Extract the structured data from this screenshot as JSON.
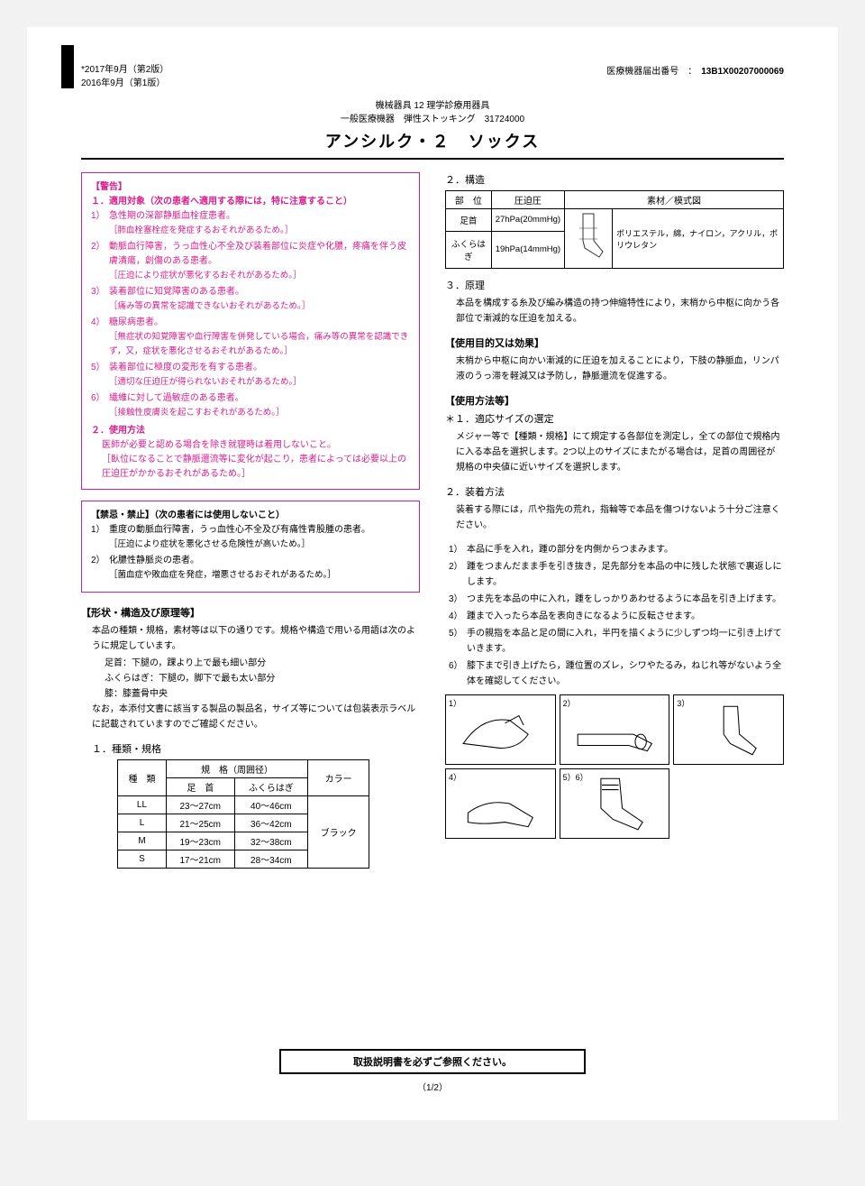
{
  "header": {
    "version2": "*2017年9月（第2版）",
    "version1": "2016年9月（第1版）",
    "device_no_label": "医療機器届出番号　：　",
    "device_no": "13B1X00207000069",
    "category1": "機械器具 12 理学診療用器具",
    "category2": "一般医療機器　弾性ストッキング　31724000",
    "product_name": "アンシルク・２　ソックス"
  },
  "warning": {
    "title": "【警告】",
    "sub1": "１．適用対象（次の患者へ適用する際には，特に注意すること）",
    "items": [
      {
        "n": "1）",
        "t": "急性期の深部静脈血栓症患者。",
        "b": "［肺血栓塞栓症を発症するおそれがあるため。］"
      },
      {
        "n": "2）",
        "t": "動脈血行障害，うっ血性心不全及び装着部位に炎症や化膿，疼痛を伴う皮膚潰瘍，創傷のある患者。",
        "b": "［圧迫により症状が悪化するおそれがあるため。］"
      },
      {
        "n": "3）",
        "t": "装着部位に知覚障害のある患者。",
        "b": "［痛み等の異常を認識できないおそれがあるため。］"
      },
      {
        "n": "4）",
        "t": "糖尿病患者。",
        "b": "［無症状の知覚障害や血行障害を併発している場合，痛み等の異常を認識できず，又，症状を悪化させるおそれがあるため。］"
      },
      {
        "n": "5）",
        "t": "装着部位に極度の変形を有する患者。",
        "b": "［適切な圧迫圧が得られないおそれがあるため。］"
      },
      {
        "n": "6）",
        "t": "繊維に対して過敏症のある患者。",
        "b": "［接触性皮膚炎を起こすおそれがあるため。］"
      }
    ],
    "sub2": "２．使用方法",
    "method_text": "医師が必要と認める場合を除き就寝時は着用しないこと。",
    "method_bracket": "［臥位になることで静脈還流等に変化が起こり，患者によっては必要以上の圧迫圧がかかるおそれがあるため。］"
  },
  "contra": {
    "title": "【禁忌・禁止】（次の患者には使用しないこと）",
    "items": [
      {
        "n": "1）",
        "t": "重度の動脈血行障害，うっ血性心不全及び有痛性青股腫の患者。",
        "b": "［圧迫により症状を悪化させる危険性が高いため。］"
      },
      {
        "n": "2）",
        "t": "化膿性静脈炎の患者。",
        "b": "［菌血症や敗血症を発症，増悪させるおそれがあるため。］"
      }
    ]
  },
  "shape": {
    "title": "【形状・構造及び原理等】",
    "intro": "本品の種類・規格，素材等は以下の通りです。規格や構造で用いる用語は次のように規定しています。",
    "defs": [
      "足首：下腿の，踝より上で最も細い部分",
      "ふくらはぎ：下腿の，脚下で最も太い部分",
      "膝：膝蓋骨中央"
    ],
    "note": "なお，本添付文書に該当する製品の製品名，サイズ等については包装表示ラベルに記載されていますのでご確認ください。"
  },
  "type_table": {
    "title": "１．種類・規格",
    "h_type": "種　類",
    "h_spec": "規　格（周囲径）",
    "h_ankle": "足　首",
    "h_calf": "ふくらはぎ",
    "h_color": "カラー",
    "rows": [
      {
        "type": "LL",
        "ankle": "23～27cm",
        "calf": "40～46cm"
      },
      {
        "type": "L",
        "ankle": "21～25cm",
        "calf": "36～42cm"
      },
      {
        "type": "M",
        "ankle": "19～23cm",
        "calf": "32～38cm"
      },
      {
        "type": "S",
        "ankle": "17～21cm",
        "calf": "28～34cm"
      }
    ],
    "color": "ブラック"
  },
  "struct": {
    "title": "２．構造",
    "h_part": "部　位",
    "h_press": "圧迫圧",
    "h_mat": "素材／模式図",
    "rows": [
      {
        "part": "足首",
        "press": "27hPa(20mmHg)"
      },
      {
        "part": "ふくらはぎ",
        "press": "19hPa(14mmHg)"
      }
    ],
    "materials": "ポリエステル，綿，ナイロン，アクリル，ポリウレタン"
  },
  "principle": {
    "title": "３．原理",
    "text": "本品を構成する糸及び編み構造の持つ伸縮特性により，末梢から中枢に向かう各部位で漸減的な圧迫を加える。"
  },
  "purpose": {
    "title": "【使用目的又は効果】",
    "text": "末梢から中枢に向かい漸減的に圧迫を加えることにより，下肢の静脈血，リンパ液のうっ滞を軽減又は予防し，静脈還流を促進する。"
  },
  "usage": {
    "title": "【使用方法等】",
    "sec1_title": "＊１．適応サイズの選定",
    "sec1_text": "メジャー等で【種類・規格】にて規定する各部位を測定し，全ての部位で規格内に入る本品を選択します。2つ以上のサイズにまたがる場合は，足首の周囲径が規格の中央値に近いサイズを選択します。",
    "sec2_title": "２．装着方法",
    "sec2_intro": "装着する際には，爪や指先の荒れ，指輪等で本品を傷つけないよう十分ご注意ください。",
    "steps": [
      {
        "n": "1）",
        "t": "本品に手を入れ，踵の部分を内側からつまみます。"
      },
      {
        "n": "2）",
        "t": "踵をつまんだまま手を引き抜き，足先部分を本品の中に残した状態で裏返しにします。"
      },
      {
        "n": "3）",
        "t": "つま先を本品の中に入れ，踵をしっかりあわせるように本品を引き上げます。"
      },
      {
        "n": "4）",
        "t": "踵まで入ったら本品を表向きになるように反転させます。"
      },
      {
        "n": "5）",
        "t": "手の親指を本品と足の間に入れ，半円を描くように少しずつ均一に引き上げていきます。"
      },
      {
        "n": "6）",
        "t": "膝下まで引き上げたら，踵位置のズレ，シワやたるみ，ねじれ等がないよう全体を確認してください。"
      }
    ],
    "panel_labels": [
      "1）",
      "2）",
      "3）",
      "4）",
      "5）6）",
      ""
    ]
  },
  "footer": {
    "note": "取扱説明書を必ずご参照ください。",
    "page": "（1/2）"
  }
}
